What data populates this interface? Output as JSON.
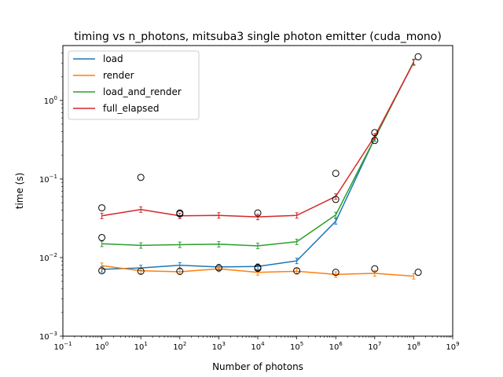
{
  "chart_data": {
    "type": "line",
    "title": "timing vs n_photons, mitsuba3 single photon emitter (cuda_mono)",
    "xlabel": "Number of photons",
    "ylabel": "time (s)",
    "xscale": "log",
    "yscale": "log",
    "xlim": [
      0.1,
      1000000000
    ],
    "ylim": [
      0.001,
      5
    ],
    "grid": false,
    "legend_position": "top-left",
    "x_ticks": [
      {
        "value": 0.1,
        "base": "10",
        "exp": "−1"
      },
      {
        "value": 1,
        "base": "10",
        "exp": "0"
      },
      {
        "value": 10,
        "base": "10",
        "exp": "1"
      },
      {
        "value": 100,
        "base": "10",
        "exp": "2"
      },
      {
        "value": 1000,
        "base": "10",
        "exp": "3"
      },
      {
        "value": 10000,
        "base": "10",
        "exp": "4"
      },
      {
        "value": 100000,
        "base": "10",
        "exp": "5"
      },
      {
        "value": 1000000,
        "base": "10",
        "exp": "6"
      },
      {
        "value": 10000000,
        "base": "10",
        "exp": "7"
      },
      {
        "value": 100000000,
        "base": "10",
        "exp": "8"
      },
      {
        "value": 1000000000,
        "base": "10",
        "exp": "9"
      }
    ],
    "y_ticks": [
      {
        "value": 0.001,
        "base": "10",
        "exp": "−3"
      },
      {
        "value": 0.01,
        "base": "10",
        "exp": "−2"
      },
      {
        "value": 0.1,
        "base": "10",
        "exp": "−1"
      },
      {
        "value": 1,
        "base": "10",
        "exp": "0"
      }
    ],
    "x": [
      1,
      10,
      100,
      1000,
      10000,
      100000,
      1000000,
      10000000,
      100000000
    ],
    "series": [
      {
        "name": "load",
        "color": "#1f77b4",
        "values": [
          0.0071,
          0.0074,
          0.008,
          0.0076,
          0.0077,
          0.0091,
          0.029,
          0.33,
          3.1
        ]
      },
      {
        "name": "render",
        "color": "#ff7f0e",
        "values": [
          0.0079,
          0.0068,
          0.0066,
          0.0072,
          0.0065,
          0.0067,
          0.0061,
          0.0063,
          0.0058
        ]
      },
      {
        "name": "load_and_render",
        "color": "#2ca02c",
        "values": [
          0.015,
          0.0143,
          0.0146,
          0.0148,
          0.0141,
          0.0159,
          0.035,
          0.33,
          3.1
        ]
      },
      {
        "name": "full_elapsed",
        "color": "#d62728",
        "values": [
          0.034,
          0.041,
          0.034,
          0.0345,
          0.033,
          0.0345,
          0.06,
          0.35,
          3.05
        ]
      }
    ],
    "outliers": [
      {
        "x": 1,
        "y": 0.043
      },
      {
        "x": 1,
        "y": 0.018
      },
      {
        "x": 1,
        "y": 0.0068
      },
      {
        "x": 10,
        "y": 0.105
      },
      {
        "x": 10,
        "y": 0.0067
      },
      {
        "x": 100,
        "y": 0.037
      },
      {
        "x": 100,
        "y": 0.036
      },
      {
        "x": 100,
        "y": 0.0067
      },
      {
        "x": 1000,
        "y": 0.0074
      },
      {
        "x": 10000,
        "y": 0.037
      },
      {
        "x": 10000,
        "y": 0.0075
      },
      {
        "x": 10000,
        "y": 0.0073
      },
      {
        "x": 100000,
        "y": 0.0068
      },
      {
        "x": 1000000,
        "y": 0.118
      },
      {
        "x": 1000000,
        "y": 0.0065
      },
      {
        "x": 1000000,
        "y": 0.055
      },
      {
        "x": 10000000,
        "y": 0.39
      },
      {
        "x": 10000000,
        "y": 0.31
      },
      {
        "x": 10000000,
        "y": 0.0072
      },
      {
        "x": 130000000,
        "y": 3.6
      },
      {
        "x": 130000000,
        "y": 0.0065
      }
    ]
  }
}
